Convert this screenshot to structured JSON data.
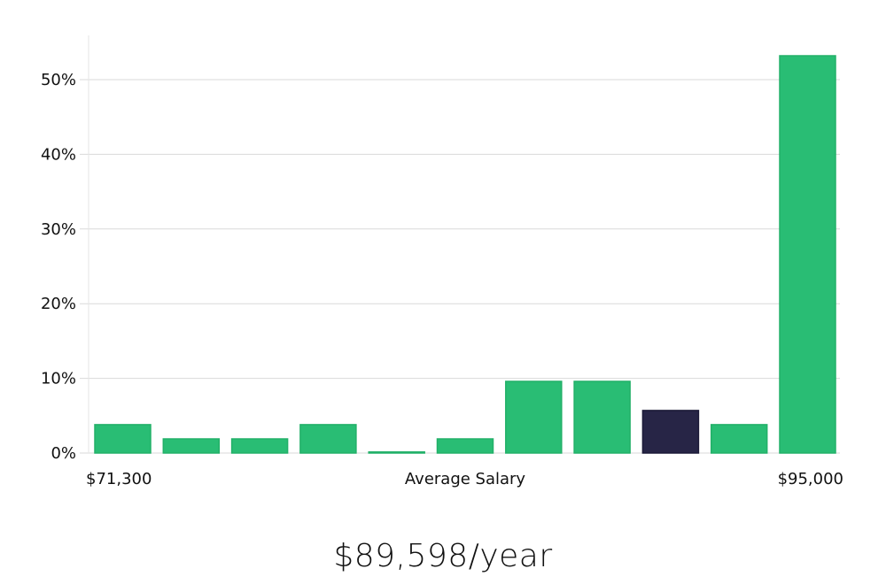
{
  "chart_data": {
    "type": "bar",
    "ylabel_ticks": [
      "0%",
      "10%",
      "20%",
      "30%",
      "40%",
      "50%"
    ],
    "ylim": [
      0,
      56
    ],
    "yticks": [
      0,
      10,
      20,
      30,
      40,
      50
    ],
    "values": [
      3.8,
      1.9,
      1.9,
      3.8,
      0.1,
      1.9,
      9.6,
      9.6,
      5.7,
      3.8,
      53.2
    ],
    "highlight_index": 8,
    "x_start_label": "$71,300",
    "x_center_label": "Average Salary",
    "x_end_label": "$95,000",
    "grid": true,
    "colors": {
      "bar": "#29bd74",
      "highlight": "#272546",
      "grid": "#d9d9d9",
      "axis": "#e6e6e6"
    }
  },
  "summary": {
    "salary_text": "$89,598/year"
  }
}
